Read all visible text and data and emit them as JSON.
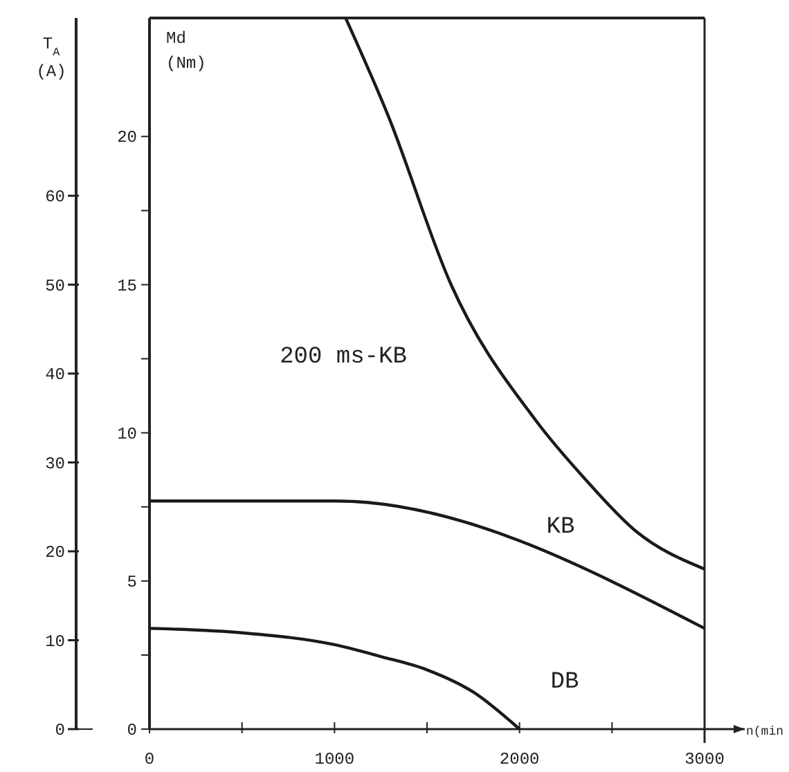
{
  "chart_data": {
    "type": "line",
    "xlabel": "n(min",
    "ylabel": "Md (Nm)",
    "y2label": "T$_{A}$ (A)",
    "xlim": [
      0,
      3000
    ],
    "xticks": [
      0,
      {
        "value": 500,
        "label": null
      },
      1000,
      {
        "value": 1500,
        "label": null
      },
      2000,
      {
        "value": 2500,
        "label": null
      },
      3000
    ],
    "ylim": [
      0,
      24
    ],
    "yticks": [
      0,
      {
        "value": 2.5,
        "label": null
      },
      5,
      {
        "value": 7.5,
        "label": null
      },
      10,
      {
        "value": 12.5,
        "label": null
      },
      15,
      {
        "value": 17.5,
        "label": null
      },
      20
    ],
    "y2lim": [
      0,
      80
    ],
    "y2ticks": [
      0,
      10,
      20,
      30,
      40,
      50,
      60
    ],
    "series": [
      {
        "color": "#1a1a1a",
        "x": [
          1060,
          1290,
          1630,
          2090,
          2360,
          2625,
          3000
        ],
        "values": [
          24,
          20.7,
          15,
          10.4,
          8.4,
          6.7,
          5.4
        ]
      },
      {
        "color": "#1a1a1a",
        "x": [
          0,
          1000,
          3000
        ],
        "values": [
          7.7,
          7.7,
          3.4
        ]
      },
      {
        "color": "#1a1a1a",
        "x": [
          0,
          500,
          1000,
          1250,
          1500,
          1750,
          2000
        ],
        "values": [
          3.4,
          3.25,
          2.85,
          2.45,
          2.0,
          1.25,
          0
        ]
      }
    ],
    "annotations": [
      "200 ms-KB",
      "KB",
      "DB"
    ]
  }
}
